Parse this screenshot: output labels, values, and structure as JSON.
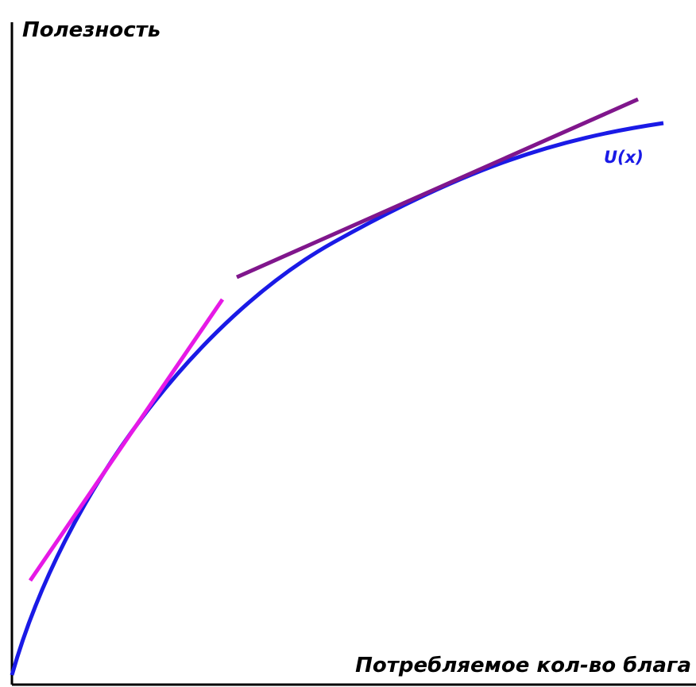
{
  "labels": {
    "y_axis": "Полезность",
    "x_axis": "Потребляемое кол-во блага",
    "curve": "U(x)"
  }
}
